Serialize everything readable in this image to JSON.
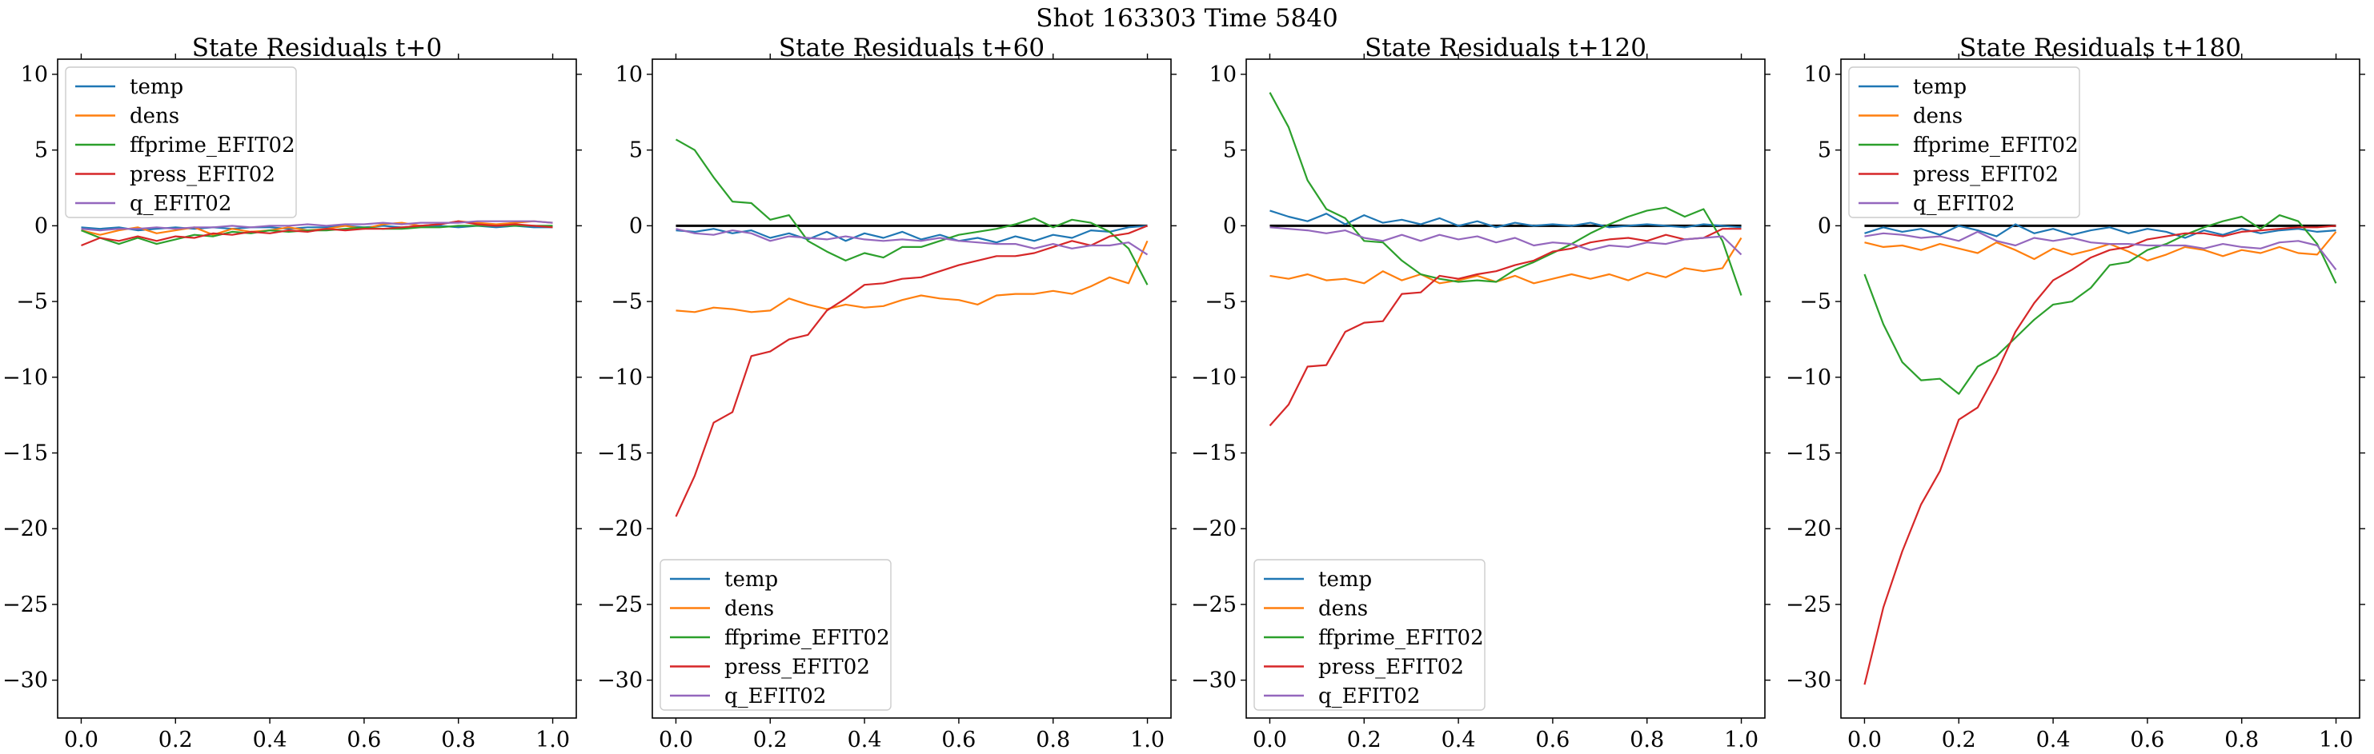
{
  "figure": {
    "suptitle": "Shot 163303   Time 5840"
  },
  "colors": {
    "temp": "#1f77b4",
    "dens": "#ff7f0e",
    "ffprime_EFIT02": "#2ca02c",
    "press_EFIT02": "#d62728",
    "q_EFIT02": "#9467bd",
    "zero_line": "#000000"
  },
  "chart_data": [
    {
      "type": "line",
      "title": "State Residuals t+0",
      "xlabel": "",
      "ylabel": "",
      "xlim": [
        -0.05,
        1.05
      ],
      "ylim": [
        -32.5,
        11.0
      ],
      "xticks": [
        "0.0",
        "0.2",
        "0.4",
        "0.6",
        "0.8",
        "1.0"
      ],
      "yticks": [
        "10",
        "5",
        "0",
        "−5",
        "−10",
        "−15",
        "−20",
        "−25",
        "−30"
      ],
      "grid": false,
      "legend_position": "upper left",
      "zero_line": false,
      "x": [
        0.0,
        0.04,
        0.08,
        0.12,
        0.16,
        0.2,
        0.24,
        0.28,
        0.32,
        0.36,
        0.4,
        0.44,
        0.48,
        0.52,
        0.56,
        0.6,
        0.64,
        0.68,
        0.72,
        0.76,
        0.8,
        0.84,
        0.88,
        0.92,
        0.96,
        1.0
      ],
      "series": [
        {
          "name": "temp",
          "values": [
            -0.1,
            -0.2,
            -0.1,
            -0.3,
            -0.2,
            -0.1,
            -0.2,
            -0.1,
            -0.2,
            -0.1,
            -0.1,
            -0.2,
            -0.1,
            -0.1,
            0.0,
            -0.1,
            0.0,
            -0.1,
            0.0,
            0.0,
            -0.1,
            0.0,
            -0.1,
            0.0,
            -0.1,
            -0.1
          ]
        },
        {
          "name": "dens",
          "values": [
            -0.3,
            -0.6,
            -0.3,
            -0.1,
            -0.5,
            -0.3,
            -0.1,
            -0.6,
            -0.2,
            -0.4,
            -0.3,
            -0.1,
            -0.3,
            -0.2,
            0.0,
            -0.2,
            0.1,
            0.2,
            0.0,
            0.1,
            0.3,
            0.2,
            0.1,
            0.2,
            0.3,
            0.2
          ]
        },
        {
          "name": "ffprime_EFIT02",
          "values": [
            -0.3,
            -0.8,
            -1.2,
            -0.8,
            -1.2,
            -0.9,
            -0.6,
            -0.7,
            -0.4,
            -0.5,
            -0.3,
            -0.4,
            -0.3,
            -0.3,
            -0.2,
            -0.1,
            -0.2,
            -0.2,
            -0.1,
            -0.1,
            0.0,
            0.0,
            0.0,
            0.0,
            0.0,
            0.0
          ]
        },
        {
          "name": "press_EFIT02",
          "values": [
            -1.3,
            -0.8,
            -1.0,
            -0.7,
            -1.0,
            -0.7,
            -0.8,
            -0.5,
            -0.6,
            -0.4,
            -0.5,
            -0.3,
            -0.4,
            -0.2,
            -0.3,
            -0.2,
            -0.2,
            -0.1,
            0.0,
            0.1,
            0.3,
            0.1,
            0.0,
            0.1,
            0.0,
            -0.1
          ]
        },
        {
          "name": "q_EFIT02",
          "values": [
            -0.2,
            -0.3,
            -0.2,
            -0.2,
            -0.1,
            -0.2,
            -0.1,
            -0.1,
            0.0,
            -0.1,
            0.0,
            0.0,
            0.1,
            0.0,
            0.1,
            0.1,
            0.2,
            0.1,
            0.2,
            0.2,
            0.2,
            0.3,
            0.3,
            0.3,
            0.3,
            0.2
          ]
        }
      ]
    },
    {
      "type": "line",
      "title": "State Residuals t+60",
      "xlabel": "",
      "ylabel": "",
      "xlim": [
        -0.05,
        1.05
      ],
      "ylim": [
        -32.5,
        11.0
      ],
      "xticks": [
        "0.0",
        "0.2",
        "0.4",
        "0.6",
        "0.8",
        "1.0"
      ],
      "yticks": [
        "10",
        "5",
        "0",
        "−5",
        "−10",
        "−15",
        "−20",
        "−25",
        "−30"
      ],
      "grid": false,
      "legend_position": "lower left",
      "zero_line": true,
      "x": [
        0.0,
        0.04,
        0.08,
        0.12,
        0.16,
        0.2,
        0.24,
        0.28,
        0.32,
        0.36,
        0.4,
        0.44,
        0.48,
        0.52,
        0.56,
        0.6,
        0.64,
        0.68,
        0.72,
        0.76,
        0.8,
        0.84,
        0.88,
        0.92,
        0.96,
        1.0
      ],
      "series": [
        {
          "name": "temp",
          "values": [
            -0.3,
            -0.4,
            -0.2,
            -0.5,
            -0.3,
            -0.8,
            -0.5,
            -0.9,
            -0.4,
            -1.0,
            -0.5,
            -0.8,
            -0.4,
            -0.9,
            -0.6,
            -1.0,
            -0.8,
            -1.1,
            -0.7,
            -1.0,
            -0.6,
            -0.8,
            -0.3,
            -0.4,
            -0.1,
            0.0
          ]
        },
        {
          "name": "dens",
          "values": [
            -5.6,
            -5.7,
            -5.4,
            -5.5,
            -5.7,
            -5.6,
            -4.8,
            -5.2,
            -5.5,
            -5.2,
            -5.4,
            -5.3,
            -4.9,
            -4.6,
            -4.8,
            -4.9,
            -5.2,
            -4.6,
            -4.5,
            -4.5,
            -4.3,
            -4.5,
            -4.0,
            -3.4,
            -3.8,
            -1.0
          ]
        },
        {
          "name": "ffprime_EFIT02",
          "values": [
            5.7,
            5.0,
            3.2,
            1.6,
            1.5,
            0.4,
            0.7,
            -1.0,
            -1.7,
            -2.3,
            -1.8,
            -2.1,
            -1.4,
            -1.4,
            -1.0,
            -0.6,
            -0.4,
            -0.2,
            0.1,
            0.5,
            -0.1,
            0.4,
            0.2,
            -0.4,
            -1.5,
            -3.9
          ]
        },
        {
          "name": "press_EFIT02",
          "values": [
            -19.2,
            -16.5,
            -13.0,
            -12.3,
            -8.6,
            -8.3,
            -7.5,
            -7.2,
            -5.6,
            -4.8,
            -3.9,
            -3.8,
            -3.5,
            -3.4,
            -3.0,
            -2.6,
            -2.3,
            -2.0,
            -2.0,
            -1.8,
            -1.4,
            -1.0,
            -1.3,
            -0.7,
            -0.5,
            0.0
          ]
        },
        {
          "name": "q_EFIT02",
          "values": [
            -0.2,
            -0.5,
            -0.6,
            -0.3,
            -0.5,
            -1.0,
            -0.7,
            -0.8,
            -0.9,
            -0.7,
            -0.9,
            -1.0,
            -0.9,
            -1.0,
            -0.8,
            -1.0,
            -1.1,
            -1.2,
            -1.2,
            -1.5,
            -1.2,
            -1.5,
            -1.3,
            -1.3,
            -1.1,
            -1.9
          ]
        }
      ]
    },
    {
      "type": "line",
      "title": "State Residuals t+120",
      "xlabel": "",
      "ylabel": "",
      "xlim": [
        -0.05,
        1.05
      ],
      "ylim": [
        -32.5,
        11.0
      ],
      "xticks": [
        "0.0",
        "0.2",
        "0.4",
        "0.6",
        "0.8",
        "1.0"
      ],
      "yticks": [
        "10",
        "5",
        "0",
        "−5",
        "−10",
        "−15",
        "−20",
        "−25",
        "−30"
      ],
      "grid": false,
      "legend_position": "lower left",
      "zero_line": true,
      "x": [
        0.0,
        0.04,
        0.08,
        0.12,
        0.16,
        0.2,
        0.24,
        0.28,
        0.32,
        0.36,
        0.4,
        0.44,
        0.48,
        0.52,
        0.56,
        0.6,
        0.64,
        0.68,
        0.72,
        0.76,
        0.8,
        0.84,
        0.88,
        0.92,
        0.96,
        1.0
      ],
      "series": [
        {
          "name": "temp",
          "values": [
            1.0,
            0.6,
            0.3,
            0.8,
            0.1,
            0.7,
            0.2,
            0.4,
            0.1,
            0.5,
            0.0,
            0.3,
            -0.1,
            0.2,
            0.0,
            0.1,
            0.0,
            0.2,
            -0.1,
            0.0,
            0.1,
            0.0,
            -0.1,
            0.1,
            0.0,
            -0.1
          ]
        },
        {
          "name": "dens",
          "values": [
            -3.3,
            -3.5,
            -3.2,
            -3.6,
            -3.5,
            -3.8,
            -3.0,
            -3.6,
            -3.2,
            -3.8,
            -3.6,
            -3.3,
            -3.7,
            -3.3,
            -3.8,
            -3.5,
            -3.2,
            -3.5,
            -3.2,
            -3.6,
            -3.1,
            -3.4,
            -2.8,
            -3.0,
            -2.8,
            -0.8
          ]
        },
        {
          "name": "ffprime_EFIT02",
          "values": [
            8.8,
            6.5,
            3.0,
            1.1,
            0.5,
            -1.0,
            -1.1,
            -2.3,
            -3.2,
            -3.5,
            -3.7,
            -3.6,
            -3.7,
            -2.9,
            -2.4,
            -1.8,
            -1.2,
            -0.5,
            0.1,
            0.6,
            1.0,
            1.2,
            0.6,
            1.1,
            -1.0,
            -4.6
          ]
        },
        {
          "name": "press_EFIT02",
          "values": [
            -13.2,
            -11.8,
            -9.3,
            -9.2,
            -7.0,
            -6.4,
            -6.3,
            -4.5,
            -4.4,
            -3.3,
            -3.5,
            -3.2,
            -3.0,
            -2.6,
            -2.3,
            -1.7,
            -1.5,
            -1.1,
            -0.9,
            -0.8,
            -1.0,
            -0.6,
            -0.9,
            -0.8,
            -0.2,
            -0.2
          ]
        },
        {
          "name": "q_EFIT02",
          "values": [
            -0.1,
            -0.2,
            -0.3,
            -0.5,
            -0.3,
            -0.8,
            -1.0,
            -0.6,
            -1.0,
            -0.6,
            -0.9,
            -0.7,
            -1.1,
            -0.8,
            -1.3,
            -1.1,
            -1.2,
            -1.6,
            -1.3,
            -1.4,
            -1.1,
            -1.2,
            -0.9,
            -0.8,
            -0.7,
            -1.9
          ]
        }
      ]
    },
    {
      "type": "line",
      "title": "State Residuals t+180",
      "xlabel": "",
      "ylabel": "",
      "xlim": [
        -0.05,
        1.05
      ],
      "ylim": [
        -32.5,
        11.0
      ],
      "xticks": [
        "0.0",
        "0.2",
        "0.4",
        "0.6",
        "0.8",
        "1.0"
      ],
      "yticks": [
        "10",
        "5",
        "0",
        "−5",
        "−10",
        "−15",
        "−20",
        "−25",
        "−30"
      ],
      "grid": false,
      "legend_position": "upper left",
      "zero_line": true,
      "x": [
        0.0,
        0.04,
        0.08,
        0.12,
        0.16,
        0.2,
        0.24,
        0.28,
        0.32,
        0.36,
        0.4,
        0.44,
        0.48,
        0.52,
        0.56,
        0.6,
        0.64,
        0.68,
        0.72,
        0.76,
        0.8,
        0.84,
        0.88,
        0.92,
        0.96,
        1.0
      ],
      "series": [
        {
          "name": "temp",
          "values": [
            -0.5,
            -0.1,
            -0.4,
            -0.2,
            -0.6,
            0.0,
            -0.3,
            -0.7,
            0.1,
            -0.5,
            -0.2,
            -0.6,
            -0.3,
            -0.1,
            -0.5,
            -0.2,
            -0.4,
            -0.8,
            -0.3,
            -0.6,
            -0.2,
            -0.5,
            -0.3,
            -0.2,
            -0.4,
            -0.3
          ]
        },
        {
          "name": "dens",
          "values": [
            -1.1,
            -1.4,
            -1.3,
            -1.6,
            -1.2,
            -1.5,
            -1.8,
            -1.1,
            -1.6,
            -2.2,
            -1.5,
            -1.9,
            -1.6,
            -1.2,
            -1.7,
            -2.3,
            -1.9,
            -1.4,
            -1.6,
            -2.0,
            -1.6,
            -1.8,
            -1.4,
            -1.8,
            -1.9,
            -0.4
          ]
        },
        {
          "name": "ffprime_EFIT02",
          "values": [
            -3.2,
            -6.5,
            -9.0,
            -10.2,
            -10.1,
            -11.1,
            -9.3,
            -8.6,
            -7.4,
            -6.2,
            -5.2,
            -5.0,
            -4.1,
            -2.6,
            -2.4,
            -1.6,
            -1.2,
            -0.6,
            -0.1,
            0.3,
            0.6,
            -0.2,
            0.7,
            0.3,
            -1.2,
            -3.8
          ]
        },
        {
          "name": "press_EFIT02",
          "values": [
            -30.3,
            -25.2,
            -21.5,
            -18.4,
            -16.2,
            -12.8,
            -12.0,
            -9.7,
            -7.0,
            -5.1,
            -3.6,
            -2.9,
            -2.1,
            -1.6,
            -1.4,
            -0.9,
            -0.7,
            -0.5,
            -0.5,
            -0.7,
            -0.4,
            -0.3,
            -0.2,
            -0.1,
            -0.1,
            0.0
          ]
        },
        {
          "name": "q_EFIT02",
          "values": [
            -0.7,
            -0.5,
            -0.6,
            -0.8,
            -0.7,
            -1.0,
            -0.4,
            -1.0,
            -1.3,
            -0.8,
            -1.0,
            -0.8,
            -1.1,
            -1.2,
            -1.2,
            -1.3,
            -1.3,
            -1.3,
            -1.5,
            -1.2,
            -1.4,
            -1.5,
            -1.1,
            -1.0,
            -1.3,
            -2.9
          ]
        }
      ]
    }
  ]
}
